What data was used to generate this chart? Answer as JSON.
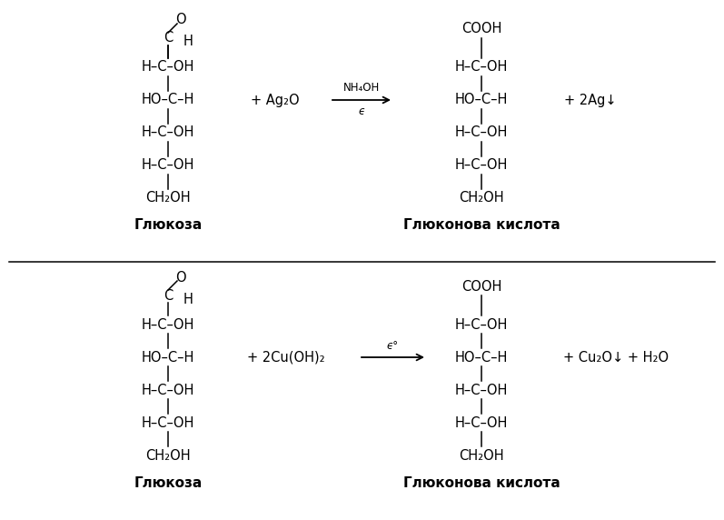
{
  "bg_color": "#ffffff",
  "fig_width": 7.97,
  "fig_height": 5.72,
  "font_size": 10.5,
  "font_size_small": 8.5,
  "font_size_label": 11,
  "rows_glucose": [
    "H–C–OH",
    "HO–C–H",
    "H–C–OH",
    "H–C–OH"
  ],
  "rows_product": [
    "H–C–OH",
    "HO–C–H",
    "H–C–OH",
    "H–C–OH"
  ],
  "label_gluc": "Глюкоза",
  "label_acid": "Глюконова кислота",
  "r1_reagent": "+ Ag₂O",
  "r1_arrow_top": "NH₄OH",
  "r1_arrow_bot": "ϵ",
  "r1_byproduct": "+ 2Ag↓",
  "r2_reagent": "+ 2Cu(OH)₂",
  "r2_arrow_top": "ϵ°",
  "r2_byproduct": "+ Cu₂O↓ + H₂O"
}
